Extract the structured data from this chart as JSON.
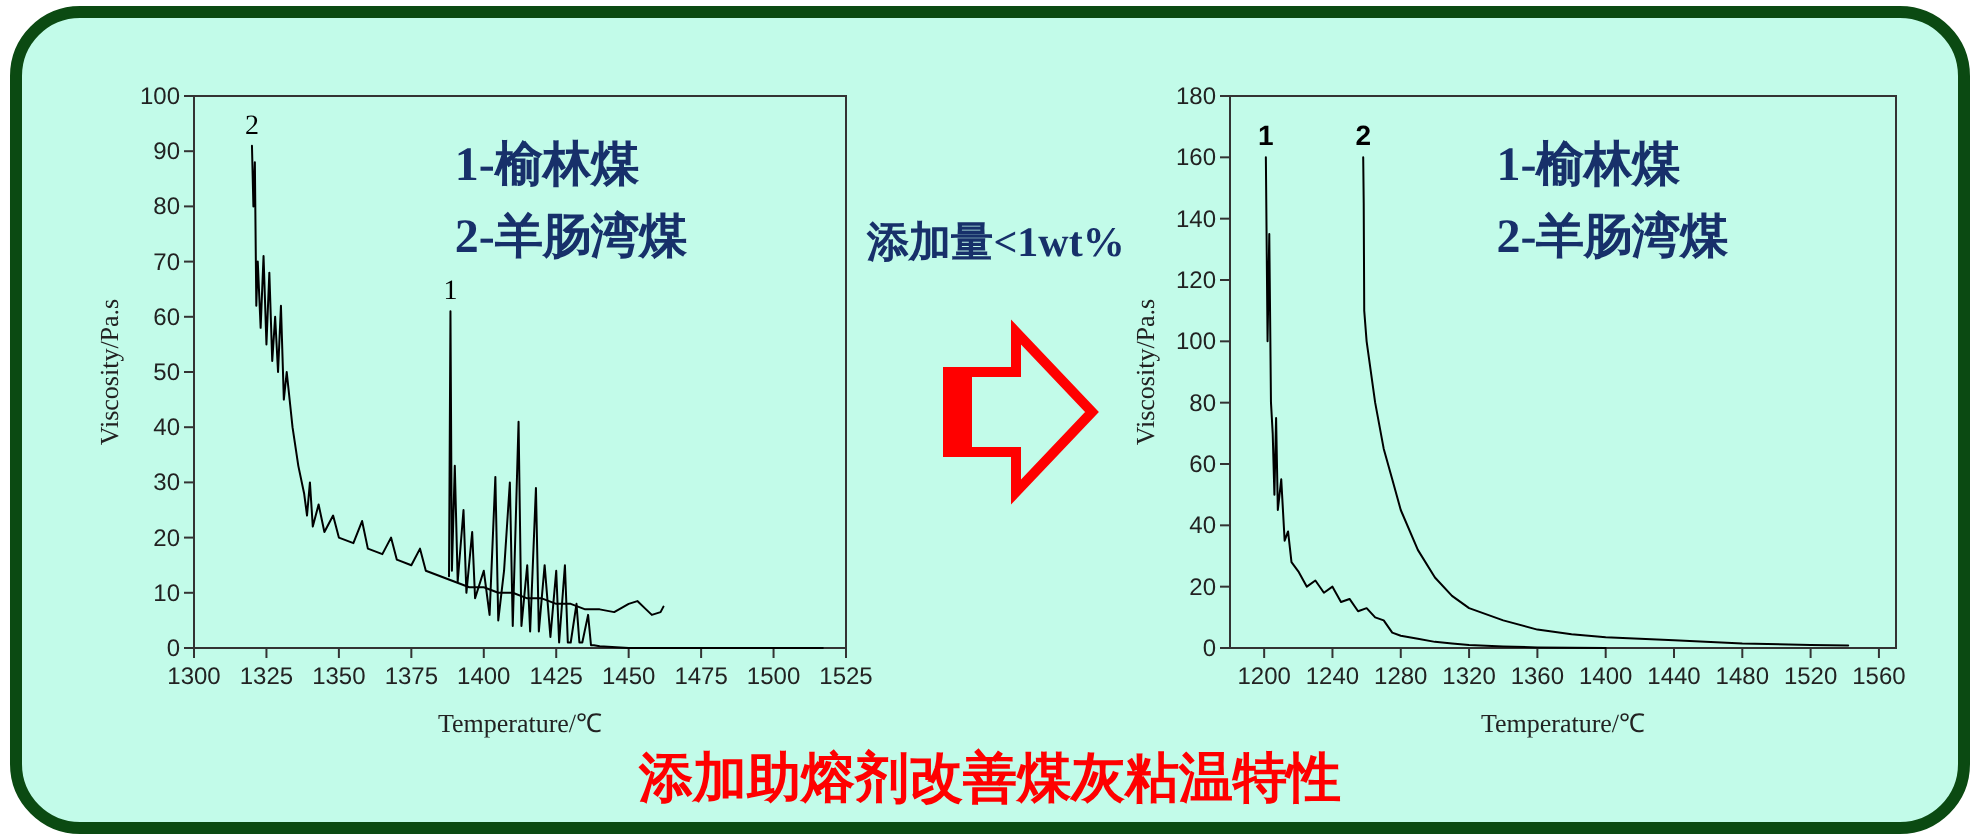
{
  "chart_data": [
    {
      "type": "line",
      "xlabel": "Temperature/℃",
      "ylabel": "Viscosity/Pa.s",
      "xlim": [
        1300,
        1525
      ],
      "ylim": [
        0,
        100
      ],
      "xticks": [
        1300,
        1325,
        1350,
        1375,
        1400,
        1425,
        1450,
        1475,
        1500,
        1525
      ],
      "yticks": [
        0,
        10,
        20,
        30,
        40,
        50,
        60,
        70,
        80,
        90,
        100
      ],
      "annotations": [
        "1-榆林煤",
        "2-羊肠湾煤"
      ],
      "series": [
        {
          "name": "1",
          "color": "#000000",
          "x": [
            1388,
            1388.5,
            1389,
            1390,
            1391,
            1393,
            1394,
            1396,
            1397,
            1400,
            1402,
            1404,
            1405,
            1407,
            1409,
            1410,
            1412,
            1413,
            1415,
            1416,
            1418,
            1419,
            1421,
            1423,
            1425,
            1426,
            1428,
            1429,
            1430,
            1432,
            1433,
            1434,
            1436,
            1437,
            1438,
            1440,
            1450,
            1517
          ],
          "values": [
            13,
            61,
            14,
            33,
            12,
            25,
            10,
            21,
            9,
            14,
            6,
            31,
            5,
            14,
            30,
            4,
            41,
            4,
            15,
            3,
            29,
            3,
            15,
            2,
            14,
            1,
            15,
            1,
            1,
            8,
            1,
            1,
            6,
            0.5,
            0.5,
            0.3,
            0,
            0
          ]
        },
        {
          "name": "2",
          "color": "#000000",
          "x": [
            1320,
            1320.5,
            1321,
            1321.5,
            1322,
            1323,
            1324,
            1325,
            1326,
            1327,
            1328,
            1329,
            1330,
            1331,
            1332,
            1334,
            1336,
            1338,
            1339,
            1340,
            1341,
            1343,
            1345,
            1348,
            1350,
            1355,
            1358,
            1360,
            1365,
            1368,
            1370,
            1375,
            1378,
            1380,
            1385,
            1390,
            1395,
            1400,
            1405,
            1410,
            1415,
            1420,
            1425,
            1430,
            1435,
            1440,
            1445,
            1450,
            1453,
            1456,
            1458,
            1461,
            1462
          ],
          "values": [
            91,
            80,
            88,
            62,
            70,
            58,
            71,
            55,
            68,
            52,
            60,
            50,
            62,
            45,
            50,
            40,
            33,
            28,
            24,
            30,
            22,
            26,
            21,
            24,
            20,
            19,
            23,
            18,
            17,
            20,
            16,
            15,
            18,
            14,
            13,
            12,
            11,
            11,
            10,
            10,
            9,
            9,
            8,
            8,
            7,
            7,
            6.5,
            8,
            8.5,
            7,
            6,
            6.5,
            7.5
          ]
        }
      ]
    },
    {
      "type": "line",
      "xlabel": "Temperature/℃",
      "ylabel": "Viscosity/Pa.s",
      "xlim": [
        1180,
        1570
      ],
      "ylim": [
        0,
        180
      ],
      "xticks": [
        1200,
        1240,
        1280,
        1320,
        1360,
        1400,
        1440,
        1480,
        1520,
        1560
      ],
      "yticks": [
        0,
        20,
        40,
        60,
        80,
        100,
        120,
        140,
        160,
        180
      ],
      "annotations": [
        "1-榆林煤",
        "2-羊肠湾煤"
      ],
      "series": [
        {
          "name": "1",
          "color": "#000000",
          "x": [
            1201,
            1202,
            1203,
            1204,
            1205,
            1206,
            1207,
            1208,
            1210,
            1212,
            1214,
            1216,
            1220,
            1225,
            1230,
            1235,
            1240,
            1245,
            1250,
            1255,
            1260,
            1265,
            1270,
            1275,
            1280,
            1290,
            1300,
            1310,
            1320,
            1340,
            1360,
            1400
          ],
          "values": [
            160,
            100,
            135,
            80,
            70,
            50,
            75,
            45,
            55,
            35,
            38,
            28,
            25,
            20,
            22,
            18,
            20,
            15,
            16,
            12,
            13,
            10,
            9,
            5,
            4,
            3,
            2,
            1.5,
            1,
            0.5,
            0.2,
            0
          ]
        },
        {
          "name": "2",
          "color": "#000000",
          "x": [
            1258,
            1258.3,
            1258.6,
            1260,
            1265,
            1270,
            1275,
            1280,
            1290,
            1300,
            1310,
            1320,
            1340,
            1360,
            1380,
            1400,
            1440,
            1480,
            1520,
            1542
          ],
          "values": [
            160,
            145,
            110,
            100,
            80,
            65,
            55,
            45,
            32,
            23,
            17,
            13,
            9,
            6,
            4.5,
            3.5,
            2.5,
            1.5,
            1,
            0.8
          ]
        }
      ]
    },
    {
      "type": "other",
      "title": "添加助熔剂改善煤灰粘温特性",
      "annotations": [
        "添加量<1wt%"
      ]
    }
  ]
}
